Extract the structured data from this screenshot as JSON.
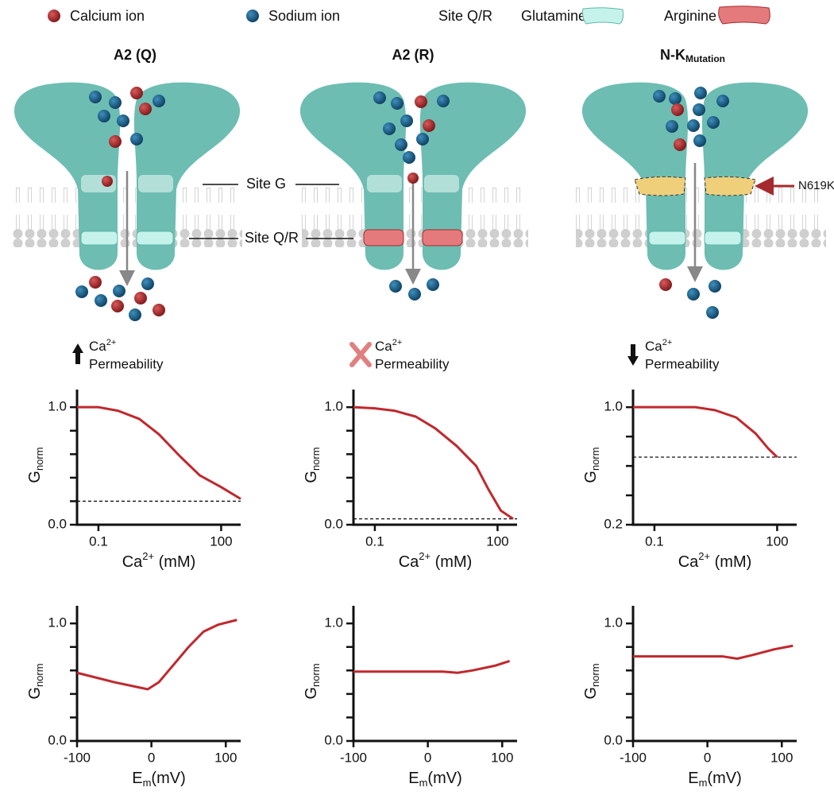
{
  "legend": {
    "calcium": "Calcium ion",
    "sodium": "Sodium ion",
    "site": "Site Q/R",
    "glutamine": "Glutamine",
    "arginine": "Arginine"
  },
  "site_labels": {
    "g": "Site G",
    "qr": "Site Q/R"
  },
  "mutation_label": "N619K",
  "panels": [
    {
      "title": "A2 (Q)",
      "permeability": {
        "ion": "Ca",
        "charge": "2+",
        "text": "Permeability"
      },
      "charts": [
        {
          "type": "line",
          "log_x": true,
          "x": [
            0.03,
            0.1,
            0.3,
            1,
            3,
            10,
            30,
            100,
            300
          ],
          "values": [
            1.0,
            1.0,
            0.97,
            0.9,
            0.77,
            0.58,
            0.42,
            0.32,
            0.22
          ],
          "color": "#c0282d",
          "xlim": [
            0.03,
            300
          ],
          "xticks": [
            0.1,
            100
          ],
          "ylim": [
            0,
            1.15
          ],
          "yticks": [
            {
              "value": 0,
              "label": "0.0"
            },
            {
              "value": 1,
              "label": "1.0"
            }
          ],
          "minor_yticks": [
            0.2,
            0.4,
            0.6,
            0.8
          ],
          "reference_line": 0.2,
          "xlabel": {
            "main": "Ca",
            "sup": "2+",
            "rest": " (mM)"
          },
          "ylabel": {
            "main": "G",
            "sub": "norm"
          }
        },
        {
          "type": "line",
          "x": [
            -100,
            -50,
            -20,
            -5,
            10,
            30,
            50,
            70,
            90,
            115
          ],
          "values": [
            0.58,
            0.5,
            0.46,
            0.44,
            0.5,
            0.65,
            0.8,
            0.93,
            0.99,
            1.03
          ],
          "color": "#c0282d",
          "xlim": [
            -100,
            120
          ],
          "xticks": [
            -100,
            0,
            100
          ],
          "ylim": [
            0,
            1.15
          ],
          "yticks": [
            {
              "value": 0,
              "label": "0.0"
            },
            {
              "value": 1,
              "label": "1.0"
            }
          ],
          "minor_yticks": [
            0.2,
            0.4,
            0.6,
            0.8
          ],
          "xlabel": {
            "main": "E",
            "sub": "m",
            "rest": "(mV)"
          },
          "ylabel": {
            "main": "G",
            "sub": "norm"
          }
        }
      ]
    },
    {
      "title": "A2 (R)",
      "permeability": {
        "ion": "Ca",
        "charge": "2+",
        "text": "Permeability"
      },
      "charts": [
        {
          "type": "line",
          "log_x": true,
          "x": [
            0.03,
            0.1,
            0.3,
            1,
            3,
            10,
            30,
            60,
            120,
            240
          ],
          "values": [
            1.0,
            0.99,
            0.97,
            0.92,
            0.82,
            0.67,
            0.5,
            0.3,
            0.12,
            0.05
          ],
          "color": "#c0282d",
          "xlim": [
            0.03,
            300
          ],
          "xticks": [
            0.1,
            100
          ],
          "ylim": [
            0,
            1.15
          ],
          "yticks": [
            {
              "value": 0,
              "label": "0.0"
            },
            {
              "value": 1,
              "label": "1.0"
            }
          ],
          "minor_yticks": [
            0.2,
            0.4,
            0.6,
            0.8
          ],
          "reference_line": 0.05,
          "xlabel": {
            "main": "Ca",
            "sup": "2+",
            "rest": " (mM)"
          },
          "ylabel": {
            "main": "G",
            "sub": "norm"
          }
        },
        {
          "type": "line",
          "x": [
            -100,
            20,
            40,
            60,
            90,
            110
          ],
          "values": [
            0.59,
            0.59,
            0.58,
            0.6,
            0.64,
            0.68
          ],
          "color": "#c0282d",
          "xlim": [
            -100,
            120
          ],
          "xticks": [
            -100,
            0,
            100
          ],
          "ylim": [
            0,
            1.15
          ],
          "yticks": [
            {
              "value": 0,
              "label": "0.0"
            },
            {
              "value": 1,
              "label": "1.0"
            }
          ],
          "minor_yticks": [
            0.2,
            0.4,
            0.6,
            0.8
          ],
          "xlabel": {
            "main": "E",
            "sub": "m",
            "rest": "(mV)"
          },
          "ylabel": {
            "main": "G",
            "sub": "norm"
          }
        }
      ]
    },
    {
      "title": {
        "main": "N-K",
        "sub": "Mutation"
      },
      "permeability": {
        "ion": "Ca",
        "charge": "2+",
        "text": "Permeability"
      },
      "charts": [
        {
          "type": "line",
          "log_x": true,
          "x": [
            0.03,
            0.1,
            0.3,
            1,
            3,
            10,
            30,
            60,
            100
          ],
          "values": [
            1.0,
            1.0,
            1.0,
            1.0,
            0.98,
            0.93,
            0.82,
            0.72,
            0.66
          ],
          "color": "#c0282d",
          "xlim": [
            0.03,
            300
          ],
          "xticks": [
            0.1,
            100
          ],
          "ylim": [
            0.2,
            1.12
          ],
          "yticks": [
            {
              "value": 0.2,
              "label": "0.2"
            },
            {
              "value": 1,
              "label": "1.0"
            }
          ],
          "minor_yticks": [
            0.4,
            0.6,
            0.8
          ],
          "reference_line": 0.66,
          "xlabel": {
            "main": "Ca",
            "sup": "2+",
            "rest": " (mM)"
          },
          "ylabel": {
            "main": "G",
            "sub": "norm"
          }
        },
        {
          "type": "line",
          "x": [
            -100,
            20,
            40,
            60,
            90,
            115
          ],
          "values": [
            0.72,
            0.72,
            0.7,
            0.73,
            0.78,
            0.81
          ],
          "color": "#c0282d",
          "xlim": [
            -100,
            120
          ],
          "xticks": [
            -100,
            0,
            100
          ],
          "ylim": [
            0,
            1.15
          ],
          "yticks": [
            {
              "value": 0,
              "label": "0.0"
            },
            {
              "value": 1,
              "label": "1.0"
            }
          ],
          "minor_yticks": [
            0.2,
            0.4,
            0.6,
            0.8
          ],
          "xlabel": {
            "main": "E",
            "sub": "m",
            "rest": "(mV)"
          },
          "ylabel": {
            "main": "G",
            "sub": "norm"
          }
        }
      ]
    }
  ]
}
